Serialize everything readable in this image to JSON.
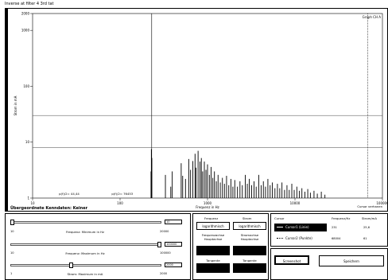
{
  "window": {
    "title": "Inverse at filter 4 3rd tat"
  },
  "plot": {
    "legend": "Graph CH A",
    "y_ticks": [
      {
        "label": "2000",
        "y": 2000
      },
      {
        "label": "1000",
        "y": 1000
      },
      {
        "label": "100",
        "y": 100
      },
      {
        "label": "10",
        "y": 10
      },
      {
        "label": "1",
        "y": 1
      }
    ],
    "x_ticks": [
      {
        "label": "10",
        "x": 10
      },
      {
        "label": "100",
        "x": 100
      },
      {
        "label": "1000",
        "x": 1000
      },
      {
        "label": "10000",
        "x": 10000
      },
      {
        "label": "100000",
        "x": 100000
      }
    ],
    "x_label": "Frequenz in Hz",
    "y_label": "Strom in mA",
    "bottom_title": "Übergeordnete Kenndaten: Keiner",
    "annotation_left": "p(f)/2= 44,44",
    "annotation_right": "p(f)/2= 76453",
    "cursor_label": "Cursor verhanen"
  },
  "chart_data": {
    "type": "bar",
    "xscale": "log",
    "yscale": "log",
    "xlim": [
      10,
      100000
    ],
    "ylim": [
      1,
      2000
    ],
    "xlabel": "Frequenz in Hz",
    "ylabel": "Strom in mA",
    "cursors": [
      {
        "x": 230
      },
      {
        "x": 68000
      }
    ],
    "hlines": [
      {
        "y": 30
      },
      {
        "y": 8
      }
    ],
    "spikes": [
      [
        228,
        7.5
      ],
      [
        231,
        5.2
      ],
      [
        226,
        3.0
      ],
      [
        330,
        2.6
      ],
      [
        395,
        3.0
      ],
      [
        380,
        1.6
      ],
      [
        500,
        4.2
      ],
      [
        520,
        2.5
      ],
      [
        560,
        2.2
      ],
      [
        610,
        5.0
      ],
      [
        640,
        3.2
      ],
      [
        680,
        4.6
      ],
      [
        720,
        6.2
      ],
      [
        740,
        3.5
      ],
      [
        780,
        7.0
      ],
      [
        820,
        4.5
      ],
      [
        850,
        5.2
      ],
      [
        880,
        3.0
      ],
      [
        920,
        4.5
      ],
      [
        960,
        3.2
      ],
      [
        1000,
        4.0
      ],
      [
        1050,
        2.6
      ],
      [
        1100,
        3.6
      ],
      [
        1150,
        2.3
      ],
      [
        1200,
        3.0
      ],
      [
        1260,
        2.0
      ],
      [
        1320,
        2.6
      ],
      [
        1400,
        1.9
      ],
      [
        1480,
        2.3
      ],
      [
        1560,
        1.8
      ],
      [
        1650,
        2.5
      ],
      [
        1750,
        1.7
      ],
      [
        1850,
        2.2
      ],
      [
        1950,
        1.6
      ],
      [
        2050,
        2.1
      ],
      [
        2200,
        1.6
      ],
      [
        2350,
        2.0
      ],
      [
        2500,
        1.7
      ],
      [
        2700,
        2.6
      ],
      [
        2850,
        1.8
      ],
      [
        3000,
        2.2
      ],
      [
        3200,
        1.7
      ],
      [
        3400,
        2.0
      ],
      [
        3600,
        1.6
      ],
      [
        3850,
        2.6
      ],
      [
        4100,
        1.7
      ],
      [
        4350,
        2.0
      ],
      [
        4600,
        1.6
      ],
      [
        4900,
        2.2
      ],
      [
        5200,
        1.7
      ],
      [
        5500,
        1.9
      ],
      [
        5900,
        1.5
      ],
      [
        6300,
        1.8
      ],
      [
        6700,
        1.5
      ],
      [
        7100,
        1.9
      ],
      [
        7600,
        1.4
      ],
      [
        8100,
        1.7
      ],
      [
        8600,
        1.4
      ],
      [
        9200,
        1.8
      ],
      [
        9800,
        1.4
      ],
      [
        10500,
        1.6
      ],
      [
        11200,
        1.35
      ],
      [
        12000,
        1.5
      ],
      [
        13000,
        1.3
      ],
      [
        14000,
        1.45
      ],
      [
        15000,
        1.25
      ],
      [
        16500,
        1.35
      ],
      [
        18000,
        1.2
      ],
      [
        20000,
        1.3
      ],
      [
        22000,
        1.15
      ]
    ]
  },
  "sliders": {
    "freq_min": {
      "label": "Frequenz: Minimum in Hz",
      "value": "10",
      "max": "20000",
      "pos": 0.0
    },
    "freq_max": {
      "label": "Frequenz: Maximum in Hz",
      "value": "100000",
      "max": "100000",
      "pos": 1.0
    },
    "strom_max": {
      "label": "Strom: Maximum in mA",
      "value": "2000",
      "max": "2000",
      "pos": 0.4
    }
  },
  "axis_panel": {
    "freq_header": "Frequenz",
    "strom_header": "Strom",
    "freq_scale": "logarithmisch",
    "strom_scale": "logarithmisch",
    "freq_fill_header": "Frequenzachse Hauptachse",
    "strom_fill_header": "Stromachse Hauptachse",
    "freq_btn2": "Tangente",
    "strom_btn2": "Tangente"
  },
  "cursor_panel": {
    "headers": [
      "Cursor",
      "Frequenz/Hz",
      "Strom/mA"
    ],
    "rows": [
      {
        "name": "Cursor1 (Linie)",
        "freq": "231",
        "strom": "25,6"
      },
      {
        "name": "Cursor2 (Punkte)",
        "freq": "68004",
        "strom": "61"
      }
    ]
  },
  "buttons": {
    "screenshot": "Screenshot",
    "save": "Speichern"
  },
  "colors": {
    "plot_line": "#000000",
    "grid": "#444444"
  }
}
